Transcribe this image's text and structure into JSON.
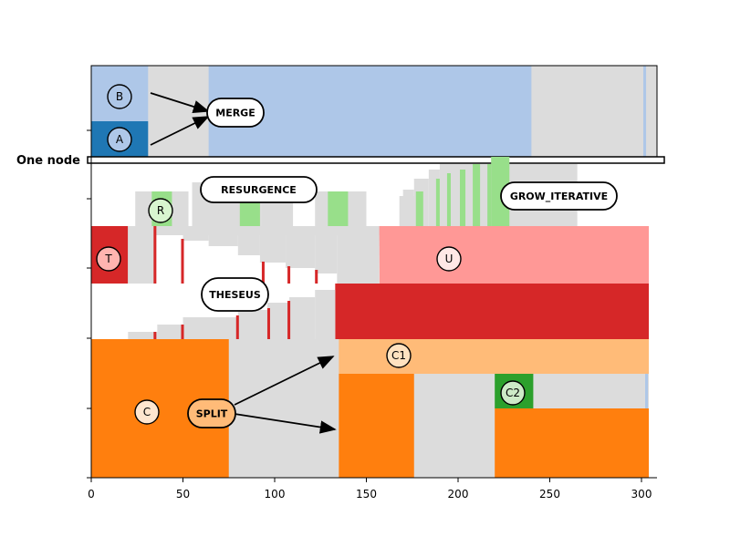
{
  "chart_data": {
    "type": "area",
    "title": "",
    "xlabel": "",
    "ylabel": "",
    "xlim": [
      0,
      310
    ],
    "xticks": [
      "0",
      "50",
      "100",
      "150",
      "200",
      "250",
      "300"
    ],
    "grid": false,
    "one_node_label": "One node",
    "colors": {
      "gray": "#dcdcdc",
      "blue_dark": "#1f77b4",
      "blue_light": "#aec7e8",
      "red_dark": "#d62728",
      "red_light": "#ff9896",
      "orange": "#ff7f0e",
      "orange_light": "#ffbb78",
      "green_dark": "#2ca02c",
      "green_light": "#98df8a"
    },
    "regions": [
      {
        "color": "gray",
        "x": [
          0,
          310
        ],
        "band": [
          0.0,
          1.0
        ]
      }
    ],
    "annotations": [
      {
        "id": "merge",
        "text": "MERGE",
        "color": "#ffffff"
      },
      {
        "id": "resurgence",
        "text": "RESURGENCE",
        "color": "#ffffff"
      },
      {
        "id": "grow",
        "text": "GROW_ITERATIVE",
        "color": "#ffffff"
      },
      {
        "id": "theseus",
        "text": "THESEUS",
        "color": "#ffffff"
      },
      {
        "id": "split",
        "text": "SPLIT",
        "color": "#ffbb78"
      }
    ],
    "markers": [
      {
        "id": "b",
        "text": "B",
        "color": "#aec7e8"
      },
      {
        "id": "a",
        "text": "A",
        "color": "#aec7e8"
      },
      {
        "id": "r",
        "text": "R",
        "color": "#d8f5cf"
      },
      {
        "id": "t",
        "text": "T",
        "color": "#ffb4b0"
      },
      {
        "id": "u",
        "text": "U",
        "color": "#ffe8e6"
      },
      {
        "id": "c1",
        "text": "C1",
        "color": "#ffe2c0"
      },
      {
        "id": "c2",
        "text": "C2",
        "color": "#cdeac7"
      },
      {
        "id": "c",
        "text": "C",
        "color": "#ffe6cf"
      }
    ]
  }
}
